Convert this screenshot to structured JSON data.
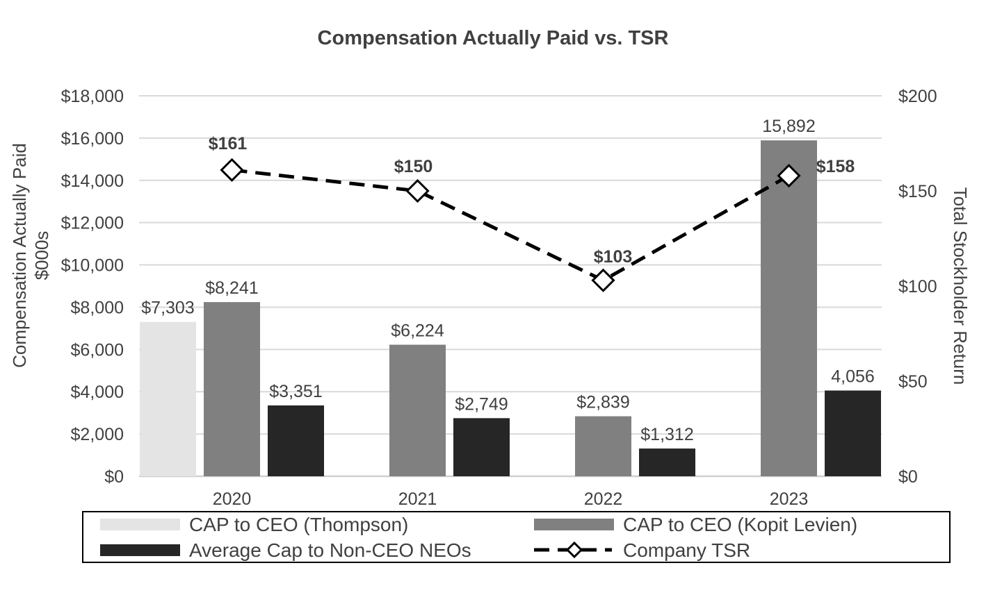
{
  "chart_data": {
    "type": "bar",
    "title": "Compensation Actually Paid vs. TSR",
    "ylabel": "Compensation Actually Paid $000s",
    "ylabel_line1": "Compensation Actually Paid",
    "ylabel_line2": "$000s",
    "y2label": "Total Stockholder Return",
    "ylim": [
      0,
      18000
    ],
    "y2lim": [
      0,
      200
    ],
    "yticks": [
      0,
      2000,
      4000,
      6000,
      8000,
      10000,
      12000,
      14000,
      16000,
      18000
    ],
    "ytick_labels": [
      "$0",
      "$2,000",
      "$4,000",
      "$6,000",
      "$8,000",
      "$10,000",
      "$12,000",
      "$14,000",
      "$16,000",
      "$18,000"
    ],
    "y2ticks": [
      0,
      50,
      100,
      150,
      200
    ],
    "y2tick_labels": [
      "$0",
      "$50",
      "$100",
      "$150",
      "$200"
    ],
    "grid": true,
    "categories": [
      "2020",
      "2021",
      "2022",
      "2023"
    ],
    "series": [
      {
        "name": "CAP to CEO (Thompson)",
        "kind": "bar",
        "color": "#e5e4e4",
        "values": [
          7303,
          null,
          null,
          null
        ],
        "labels": [
          "$7,303",
          "",
          "",
          ""
        ]
      },
      {
        "name": "CAP to CEO (Kopit Levien)",
        "kind": "bar",
        "color": "#808080",
        "values": [
          8241,
          6224,
          2839,
          15892
        ],
        "labels": [
          "$8,241",
          "$6,224",
          "$2,839",
          "15,892"
        ]
      },
      {
        "name": "Average Cap to Non-CEO NEOs",
        "kind": "bar",
        "color": "#262626",
        "values": [
          3351,
          2749,
          1312,
          4056
        ],
        "labels": [
          "$3,351",
          "$2,749",
          "$1,312",
          "4,056"
        ]
      },
      {
        "name": "Company TSR",
        "kind": "line",
        "axis": "right",
        "color": "#000000",
        "values": [
          161,
          150,
          103,
          158
        ],
        "labels": [
          "$161",
          "$150",
          "$103",
          "$158"
        ]
      }
    ],
    "legend_position": "bottom"
  }
}
